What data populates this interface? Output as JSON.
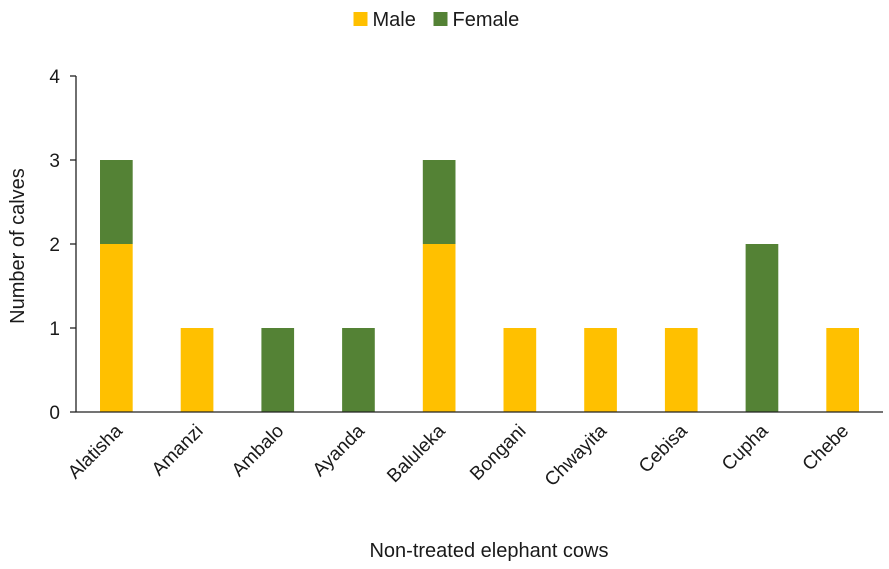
{
  "chart_data": {
    "type": "bar",
    "stacked": true,
    "title": "",
    "xlabel": "Non-treated elephant cows",
    "ylabel": "Number of calves",
    "ylim": [
      0,
      4
    ],
    "yticks": [
      0,
      1,
      2,
      3,
      4
    ],
    "grid": false,
    "legend_position": "top-center",
    "categories": [
      "Alatisha",
      "Amanzi",
      "Ambalo",
      "Ayanda",
      "Baluleka",
      "Bongani",
      "Chwayita",
      "Cebisa",
      "Cupha",
      "Chebe"
    ],
    "series": [
      {
        "name": "Male",
        "color": "#FFC000",
        "values": [
          2,
          1,
          0,
          0,
          2,
          1,
          1,
          1,
          0,
          1
        ]
      },
      {
        "name": "Female",
        "color": "#548235",
        "values": [
          1,
          0,
          1,
          1,
          1,
          0,
          0,
          0,
          2,
          0
        ]
      }
    ]
  }
}
